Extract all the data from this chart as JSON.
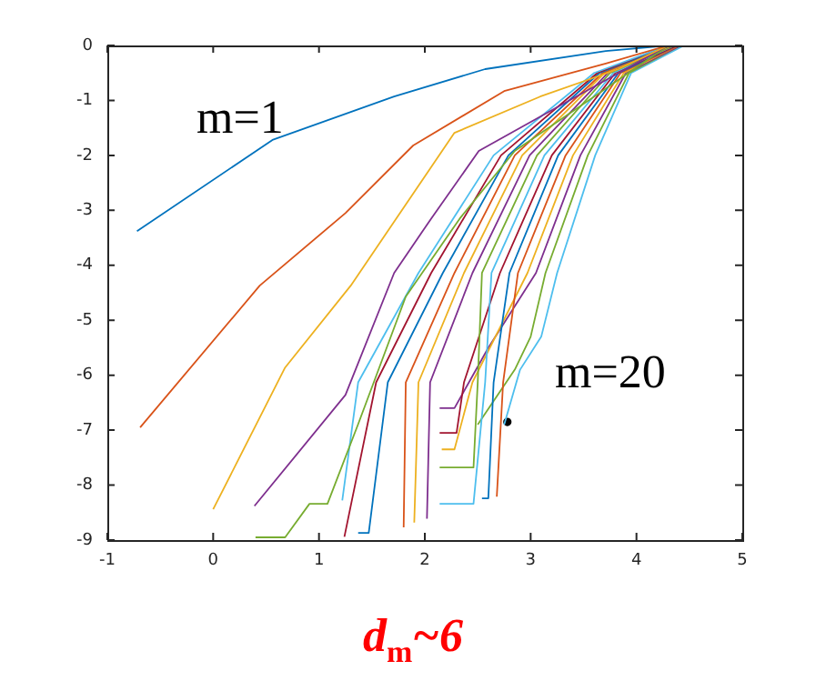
{
  "chart_data": {
    "type": "line",
    "xlim": [
      -1,
      5
    ],
    "xticks": [
      -1,
      0,
      1,
      2,
      3,
      4,
      5
    ],
    "ylim": [
      -9,
      0
    ],
    "yticks": [
      -9,
      -8,
      -7,
      -6,
      -5,
      -4,
      -3,
      -2,
      -1,
      0
    ],
    "grid": false,
    "legend": false,
    "annotations": [
      "m=1",
      "m=20",
      "d$_{m}$~6"
    ],
    "series": [
      {
        "color": "#0072bd",
        "x": [
          -0.72,
          0.56,
          1.71,
          2.57,
          3.71,
          4.3,
          4.5
        ],
        "values": [
          -3.38,
          -1.72,
          -0.93,
          -0.43,
          -0.1,
          0,
          0
        ]
      },
      {
        "color": "#d95319",
        "x": [
          -0.69,
          0.44,
          1.25,
          1.89,
          2.75,
          3.71,
          4.3,
          4.5
        ],
        "values": [
          -6.95,
          -4.37,
          -3.05,
          -1.82,
          -0.83,
          -0.33,
          0,
          0
        ]
      },
      {
        "color": "#edb120",
        "x": [
          0,
          0.68,
          1.3,
          2.28,
          3.09,
          3.83,
          4.3,
          4.5
        ],
        "values": [
          -8.44,
          -5.86,
          -4.37,
          -1.59,
          -0.93,
          -0.43,
          0,
          0
        ]
      },
      {
        "color": "#7e2f8e",
        "x": [
          0.39,
          1.25,
          1.71,
          2.06,
          2.51,
          3.43,
          4.3,
          4.5
        ],
        "values": [
          -8.38,
          -6.36,
          -4.14,
          -3.15,
          -1.92,
          -0.93,
          0,
          0
        ]
      },
      {
        "color": "#77ac30",
        "x": [
          0.4,
          0.68,
          0.91,
          1.08,
          1.37,
          1.82,
          2.33,
          2.85,
          3.6,
          4.3,
          4.5
        ],
        "values": [
          -8.95,
          -8.95,
          -8.34,
          -8.34,
          -6.89,
          -4.57,
          -3.15,
          -1.92,
          -0.93,
          0,
          0
        ]
      },
      {
        "color": "#4dbeee",
        "x": [
          1.22,
          1.37,
          1.94,
          2.65,
          3.6,
          4.3,
          4.5
        ],
        "values": [
          -8.28,
          -6.13,
          -4.14,
          -2,
          -0.5,
          0,
          0
        ]
      },
      {
        "color": "#a2142f",
        "x": [
          1.24,
          1.54,
          2.06,
          2.72,
          3.63,
          4.3,
          4.5
        ],
        "values": [
          -8.94,
          -6.13,
          -4.14,
          -2,
          -0.5,
          0,
          0
        ]
      },
      {
        "color": "#0072bd",
        "x": [
          1.37,
          1.47,
          1.65,
          2.17,
          2.79,
          3.65,
          4.32,
          4.5
        ],
        "values": [
          -8.87,
          -8.87,
          -6.13,
          -4.14,
          -2,
          -0.5,
          0,
          0
        ]
      },
      {
        "color": "#d95319",
        "x": [
          1.8,
          1.82,
          2.28,
          2.85,
          3.68,
          4.32,
          4.5
        ],
        "values": [
          -8.77,
          -6.13,
          -4.14,
          -2,
          -0.5,
          0,
          0
        ]
      },
      {
        "color": "#edb120",
        "x": [
          1.9,
          1.94,
          2.37,
          2.92,
          3.7,
          4.34,
          4.5
        ],
        "values": [
          -8.68,
          -6.13,
          -4.14,
          -2,
          -0.5,
          0,
          0
        ]
      },
      {
        "color": "#7e2f8e",
        "x": [
          2.02,
          2.05,
          2.45,
          2.99,
          3.73,
          4.34,
          4.5
        ],
        "values": [
          -8.61,
          -6.13,
          -4.14,
          -2,
          -0.5,
          0,
          0
        ]
      },
      {
        "color": "#77ac30",
        "x": [
          2.14,
          2.46,
          2.5,
          2.54,
          3.06,
          3.75,
          4.36,
          4.5
        ],
        "values": [
          -7.68,
          -7.68,
          -6.13,
          -4.14,
          -2,
          -0.5,
          0,
          0
        ]
      },
      {
        "color": "#4dbeee",
        "x": [
          2.14,
          2.46,
          2.57,
          2.63,
          3.13,
          3.78,
          4.36,
          4.5
        ],
        "values": [
          -8.34,
          -8.34,
          -6.13,
          -4.14,
          -2,
          -0.5,
          0,
          0
        ]
      },
      {
        "color": "#a2142f",
        "x": [
          2.14,
          2.3,
          2.37,
          2.71,
          3.2,
          3.8,
          4.38,
          4.5
        ],
        "values": [
          -7.05,
          -7.05,
          -6.13,
          -4.14,
          -2,
          -0.5,
          0,
          0
        ]
      },
      {
        "color": "#0072bd",
        "x": [
          2.54,
          2.6,
          2.65,
          2.8,
          3.26,
          3.83,
          4.38,
          4.5
        ],
        "values": [
          -8.24,
          -8.24,
          -6.13,
          -4.14,
          -2,
          -0.5,
          0,
          0
        ]
      },
      {
        "color": "#d95319",
        "x": [
          2.68,
          2.74,
          2.88,
          3.33,
          3.85,
          4.4,
          4.5
        ],
        "values": [
          -8.21,
          -6.13,
          -4.14,
          -2,
          -0.5,
          0,
          0
        ]
      },
      {
        "color": "#edb120",
        "x": [
          2.16,
          2.28,
          2.45,
          2.97,
          3.4,
          3.88,
          4.4,
          4.5
        ],
        "values": [
          -7.35,
          -7.35,
          -6.13,
          -4.14,
          -2,
          -0.5,
          0,
          0
        ]
      },
      {
        "color": "#7e2f8e",
        "x": [
          2.14,
          2.28,
          2.6,
          3.05,
          3.47,
          3.9,
          4.42,
          4.5
        ],
        "values": [
          -6.6,
          -6.6,
          -5.5,
          -4.14,
          -2,
          -0.5,
          0,
          0
        ]
      },
      {
        "color": "#77ac30",
        "x": [
          2.5,
          2.85,
          3.0,
          3.14,
          3.54,
          3.93,
          4.42,
          4.5
        ],
        "values": [
          -6.9,
          -5.9,
          -5.3,
          -4.14,
          -2,
          -0.5,
          0,
          0
        ]
      },
      {
        "color": "#4dbeee",
        "x": [
          2.75,
          2.9,
          3.1,
          3.25,
          3.61,
          3.95,
          4.45,
          4.5
        ],
        "values": [
          -6.9,
          -5.9,
          -5.3,
          -4.14,
          -2,
          -0.5,
          0,
          0
        ]
      },
      {
        "type": "scatter",
        "color": "#000000",
        "x": [
          2.78
        ],
        "values": [
          -6.85
        ]
      }
    ]
  }
}
